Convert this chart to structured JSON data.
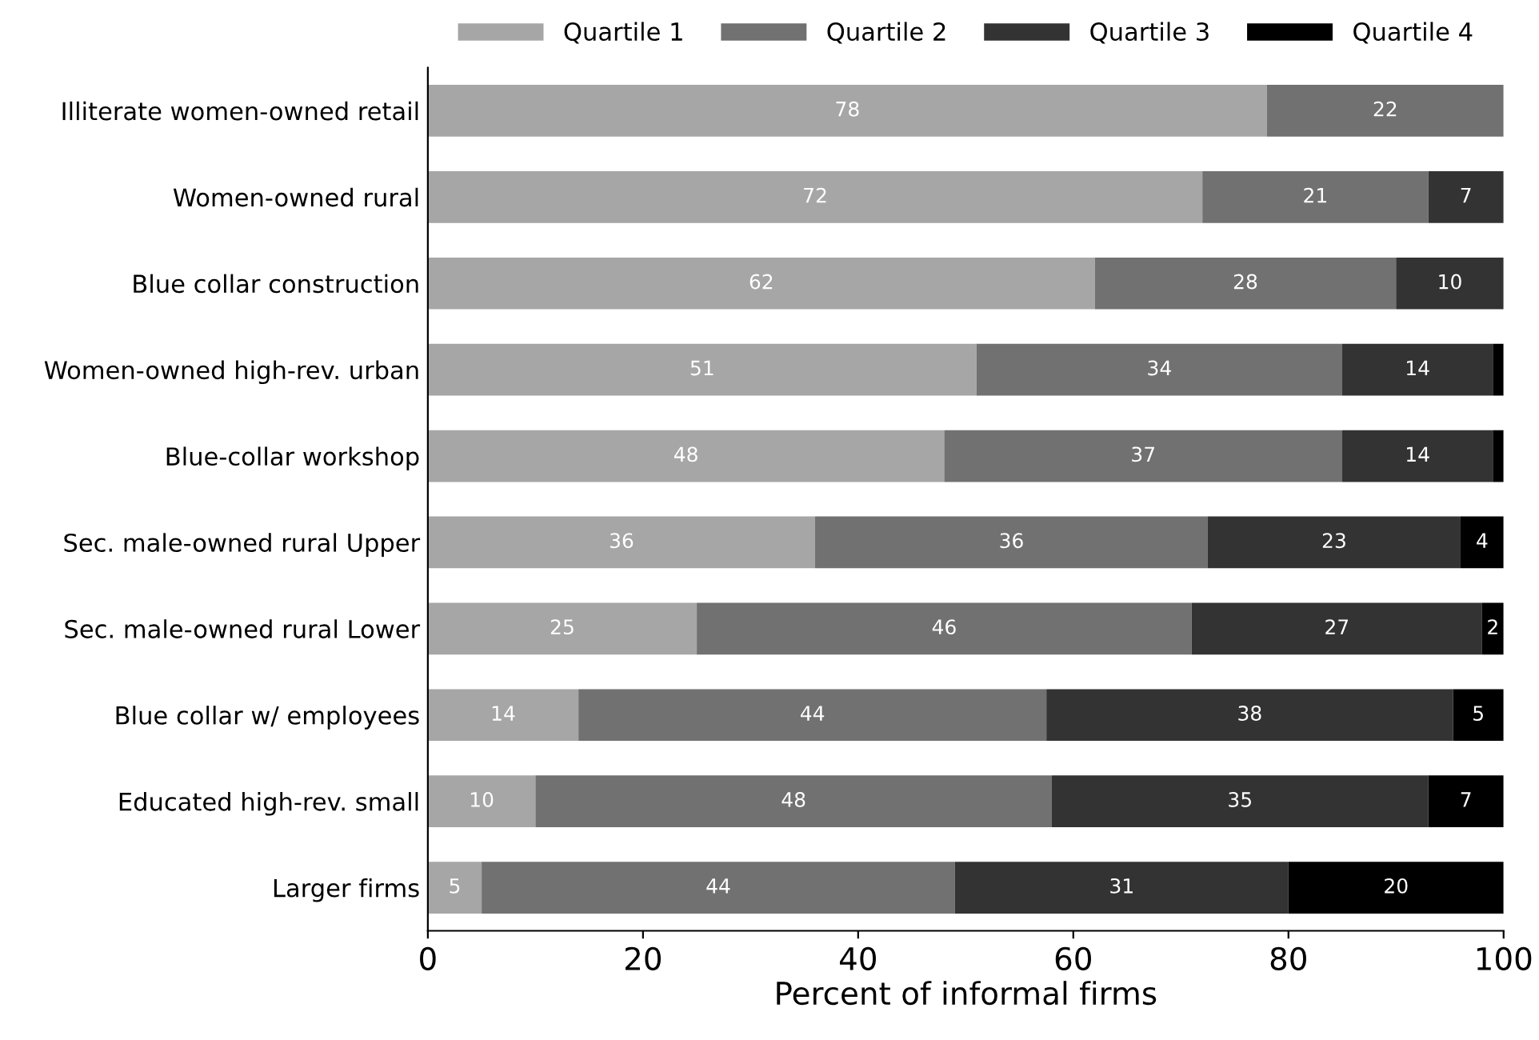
{
  "chart_data": {
    "type": "bar",
    "orientation": "horizontal",
    "stacked": true,
    "xlabel": "Percent of informal firms",
    "categories": [
      "Illiterate women-owned retail",
      "Women-owned rural",
      "Blue collar construction",
      "Women-owned high-rev. urban",
      "Blue-collar workshop",
      "Sec. male-owned rural Upper",
      "Sec. male-owned rural Lower",
      "Blue collar w/ employees",
      "Educated high-rev. small",
      "Larger firms"
    ],
    "series": [
      {
        "name": "Quartile 1",
        "color": "#a6a6a6",
        "values": [
          78,
          72,
          62,
          51,
          48,
          36,
          25,
          14,
          10,
          5
        ],
        "value_labels": [
          "78",
          "72",
          "62",
          "51",
          "48",
          "36",
          "25",
          "14",
          "10",
          "5"
        ]
      },
      {
        "name": "Quartile 2",
        "color": "#717171",
        "values": [
          22,
          21,
          28,
          34,
          37,
          36.5,
          46,
          43.5,
          48,
          44
        ],
        "value_labels": [
          "22",
          "21",
          "28",
          "34",
          "37",
          "36",
          "46",
          "44",
          "48",
          "44"
        ]
      },
      {
        "name": "Quartile 3",
        "color": "#333333",
        "values": [
          null,
          7,
          10,
          14,
          14,
          23.5,
          27,
          37.8,
          35,
          31
        ],
        "value_labels": [
          null,
          "7",
          "10",
          "14",
          "14",
          "23",
          "27",
          "38",
          "35",
          "31"
        ]
      },
      {
        "name": "Quartile 4",
        "color": "#000000",
        "values": [
          null,
          null,
          null,
          1,
          1,
          4,
          2,
          4.7,
          7,
          20
        ],
        "value_labels": [
          null,
          null,
          null,
          null,
          null,
          "4",
          "2",
          "5",
          "7",
          "20"
        ]
      }
    ],
    "xlim": [
      0,
      100
    ],
    "xticks": [
      0,
      20,
      40,
      60,
      80,
      100
    ],
    "grid": false,
    "legend": "top"
  }
}
